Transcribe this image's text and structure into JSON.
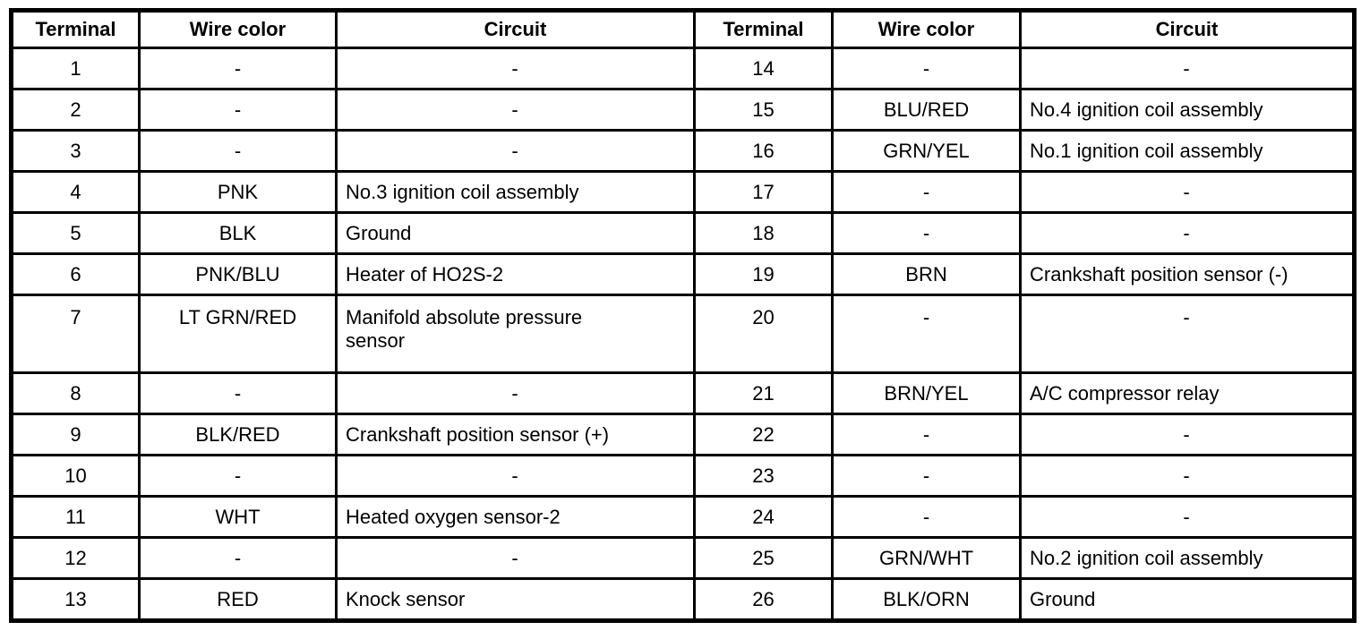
{
  "table": {
    "headers": [
      "Terminal",
      "Wire color",
      "Circuit"
    ],
    "rows": [
      {
        "left": {
          "terminal": "1",
          "wire_color": "-",
          "circuit": "-"
        },
        "right": {
          "terminal": "14",
          "wire_color": "-",
          "circuit": "-"
        }
      },
      {
        "left": {
          "terminal": "2",
          "wire_color": "-",
          "circuit": "-"
        },
        "right": {
          "terminal": "15",
          "wire_color": "BLU/RED",
          "circuit": "No.4 ignition coil assembly"
        }
      },
      {
        "left": {
          "terminal": "3",
          "wire_color": "-",
          "circuit": "-"
        },
        "right": {
          "terminal": "16",
          "wire_color": "GRN/YEL",
          "circuit": "No.1 ignition coil assembly"
        }
      },
      {
        "left": {
          "terminal": "4",
          "wire_color": "PNK",
          "circuit": "No.3 ignition coil assembly"
        },
        "right": {
          "terminal": "17",
          "wire_color": "-",
          "circuit": "-"
        }
      },
      {
        "left": {
          "terminal": "5",
          "wire_color": "BLK",
          "circuit": "Ground"
        },
        "right": {
          "terminal": "18",
          "wire_color": "-",
          "circuit": "-"
        }
      },
      {
        "left": {
          "terminal": "6",
          "wire_color": "PNK/BLU",
          "circuit": "Heater of HO2S-2"
        },
        "right": {
          "terminal": "19",
          "wire_color": "BRN",
          "circuit": "Crankshaft position sensor (-)"
        }
      },
      {
        "left": {
          "terminal": "7",
          "wire_color": "LT GRN/RED",
          "circuit": "Manifold absolute pressure sensor"
        },
        "right": {
          "terminal": "20",
          "wire_color": "-",
          "circuit": "-"
        }
      },
      {
        "left": {
          "terminal": "8",
          "wire_color": "-",
          "circuit": "-"
        },
        "right": {
          "terminal": "21",
          "wire_color": "BRN/YEL",
          "circuit": "A/C compressor relay"
        }
      },
      {
        "left": {
          "terminal": "9",
          "wire_color": "BLK/RED",
          "circuit": "Crankshaft position sensor (+)"
        },
        "right": {
          "terminal": "22",
          "wire_color": "-",
          "circuit": "-"
        }
      },
      {
        "left": {
          "terminal": "10",
          "wire_color": "-",
          "circuit": "-"
        },
        "right": {
          "terminal": "23",
          "wire_color": "-",
          "circuit": "-"
        }
      },
      {
        "left": {
          "terminal": "11",
          "wire_color": "WHT",
          "circuit": "Heated oxygen sensor-2"
        },
        "right": {
          "terminal": "24",
          "wire_color": "-",
          "circuit": "-"
        }
      },
      {
        "left": {
          "terminal": "12",
          "wire_color": "-",
          "circuit": "-"
        },
        "right": {
          "terminal": "25",
          "wire_color": "GRN/WHT",
          "circuit": "No.2 ignition coil assembly"
        }
      },
      {
        "left": {
          "terminal": "13",
          "wire_color": "RED",
          "circuit": "Knock sensor"
        },
        "right": {
          "terminal": "26",
          "wire_color": "BLK/ORN",
          "circuit": "Ground"
        }
      }
    ],
    "colors": {
      "border": "#000000",
      "text": "#000000",
      "background": "#ffffff"
    }
  }
}
